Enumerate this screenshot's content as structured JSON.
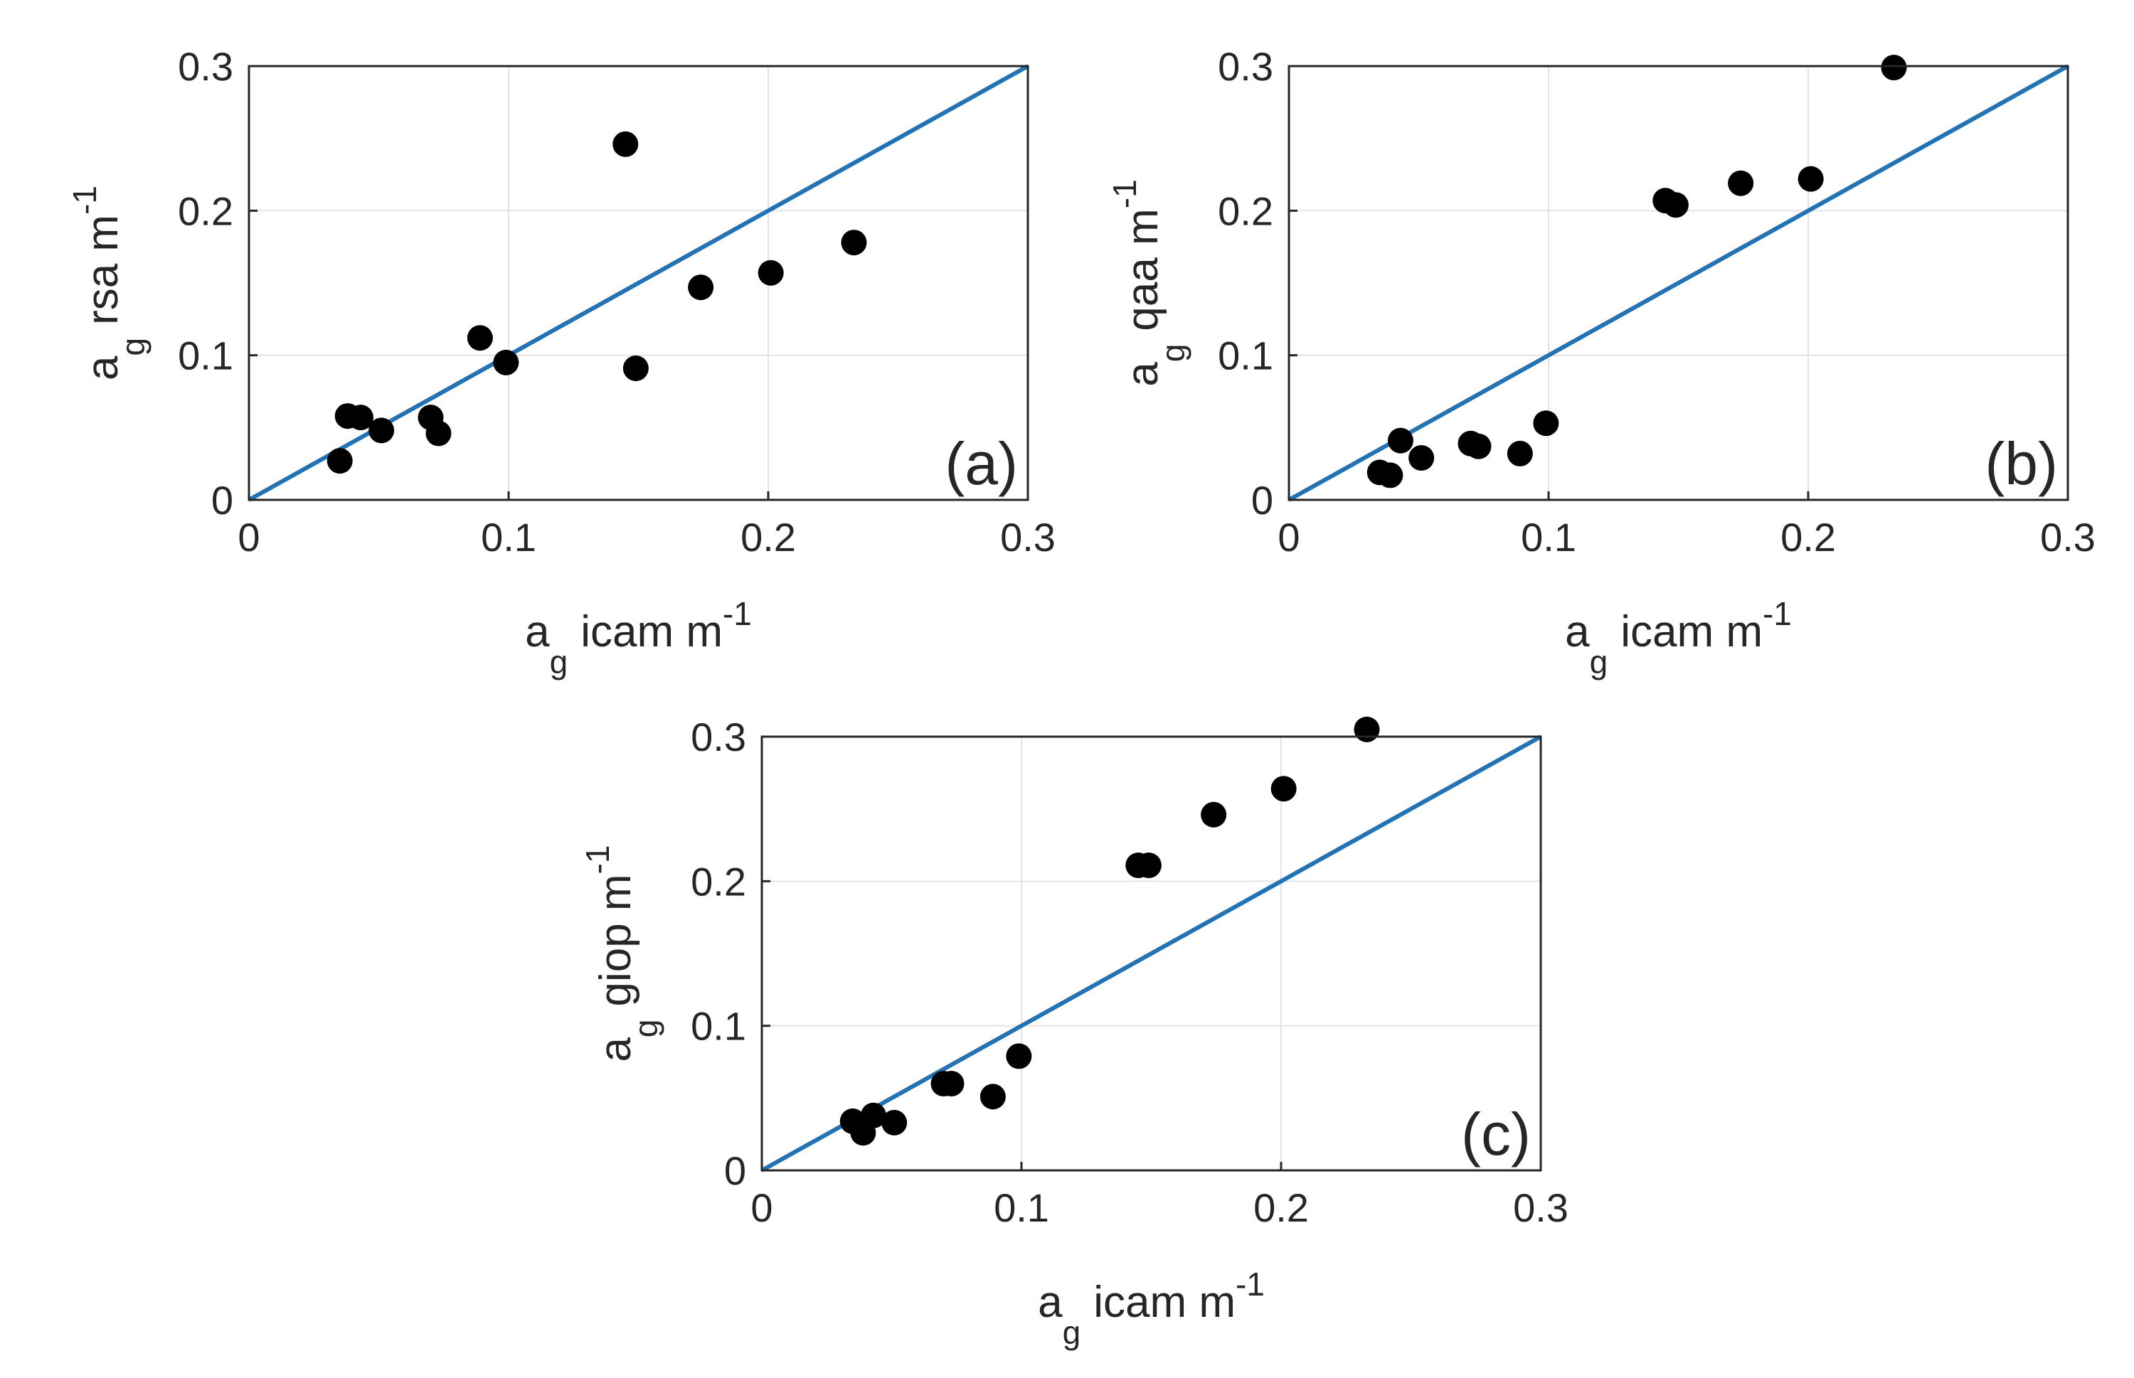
{
  "chart_data": [
    {
      "type": "scatter",
      "panel_label": "(a)",
      "xlabel": {
        "base": "a",
        "sub": "g",
        "main": "icam m",
        "sup": "-1"
      },
      "ylabel": {
        "base": "a",
        "sub": "g",
        "main": "rsa m",
        "sup": "-1"
      },
      "xlim": [
        0,
        0.3
      ],
      "ylim": [
        0,
        0.3
      ],
      "xticks": [
        0,
        0.1,
        0.2,
        0.3
      ],
      "yticks": [
        0,
        0.1,
        0.2,
        0.3
      ],
      "xtick_labels": [
        "0",
        "0.1",
        "0.2",
        "0.3"
      ],
      "ytick_labels": [
        "0",
        "0.1",
        "0.2",
        "0.3"
      ],
      "grid": true,
      "reference_line": {
        "type": "1:1",
        "from": [
          0,
          0
        ],
        "to": [
          0.3,
          0.3
        ],
        "color": "#2272b4"
      },
      "marker_color": "#000000",
      "points": [
        {
          "x": 0.035,
          "y": 0.027
        },
        {
          "x": 0.038,
          "y": 0.058
        },
        {
          "x": 0.043,
          "y": 0.057
        },
        {
          "x": 0.051,
          "y": 0.048
        },
        {
          "x": 0.07,
          "y": 0.057
        },
        {
          "x": 0.073,
          "y": 0.046
        },
        {
          "x": 0.089,
          "y": 0.112
        },
        {
          "x": 0.099,
          "y": 0.095
        },
        {
          "x": 0.145,
          "y": 0.246
        },
        {
          "x": 0.149,
          "y": 0.091
        },
        {
          "x": 0.174,
          "y": 0.147
        },
        {
          "x": 0.201,
          "y": 0.157
        },
        {
          "x": 0.233,
          "y": 0.178
        }
      ]
    },
    {
      "type": "scatter",
      "panel_label": "(b)",
      "xlabel": {
        "base": "a",
        "sub": "g",
        "main": "icam m",
        "sup": "-1"
      },
      "ylabel": {
        "base": "a",
        "sub": "g",
        "main": "qaa m",
        "sup": "-1"
      },
      "xlim": [
        0,
        0.3
      ],
      "ylim": [
        0,
        0.3
      ],
      "xticks": [
        0,
        0.1,
        0.2,
        0.3
      ],
      "yticks": [
        0,
        0.1,
        0.2,
        0.3
      ],
      "xtick_labels": [
        "0",
        "0.1",
        "0.2",
        "0.3"
      ],
      "ytick_labels": [
        "0",
        "0.1",
        "0.2",
        "0.3"
      ],
      "grid": true,
      "reference_line": {
        "type": "1:1",
        "from": [
          0,
          0
        ],
        "to": [
          0.3,
          0.3
        ],
        "color": "#2272b4"
      },
      "marker_color": "#000000",
      "points": [
        {
          "x": 0.035,
          "y": 0.019
        },
        {
          "x": 0.039,
          "y": 0.017
        },
        {
          "x": 0.043,
          "y": 0.041
        },
        {
          "x": 0.051,
          "y": 0.029
        },
        {
          "x": 0.07,
          "y": 0.039
        },
        {
          "x": 0.073,
          "y": 0.037
        },
        {
          "x": 0.089,
          "y": 0.032
        },
        {
          "x": 0.099,
          "y": 0.053
        },
        {
          "x": 0.145,
          "y": 0.207
        },
        {
          "x": 0.149,
          "y": 0.204
        },
        {
          "x": 0.174,
          "y": 0.219
        },
        {
          "x": 0.201,
          "y": 0.222
        },
        {
          "x": 0.233,
          "y": 0.299
        }
      ]
    },
    {
      "type": "scatter",
      "panel_label": "(c)",
      "xlabel": {
        "base": "a",
        "sub": "g",
        "main": "icam m",
        "sup": "-1"
      },
      "ylabel": {
        "base": "a",
        "sub": "g",
        "main": "giop m",
        "sup": "-1"
      },
      "xlim": [
        0,
        0.3
      ],
      "ylim": [
        0,
        0.3
      ],
      "xticks": [
        0,
        0.1,
        0.2,
        0.3
      ],
      "yticks": [
        0,
        0.1,
        0.2,
        0.3
      ],
      "xtick_labels": [
        "0",
        "0.1",
        "0.2",
        "0.3"
      ],
      "ytick_labels": [
        "0",
        "0.1",
        "0.2",
        "0.3"
      ],
      "grid": true,
      "reference_line": {
        "type": "1:1",
        "from": [
          0,
          0
        ],
        "to": [
          0.3,
          0.3
        ],
        "color": "#2272b4"
      },
      "marker_color": "#000000",
      "points": [
        {
          "x": 0.035,
          "y": 0.034
        },
        {
          "x": 0.039,
          "y": 0.026
        },
        {
          "x": 0.043,
          "y": 0.038
        },
        {
          "x": 0.051,
          "y": 0.033
        },
        {
          "x": 0.07,
          "y": 0.06
        },
        {
          "x": 0.073,
          "y": 0.06
        },
        {
          "x": 0.089,
          "y": 0.051
        },
        {
          "x": 0.099,
          "y": 0.079
        },
        {
          "x": 0.145,
          "y": 0.211
        },
        {
          "x": 0.149,
          "y": 0.211
        },
        {
          "x": 0.174,
          "y": 0.246
        },
        {
          "x": 0.201,
          "y": 0.264
        },
        {
          "x": 0.233,
          "y": 0.305
        }
      ]
    }
  ]
}
